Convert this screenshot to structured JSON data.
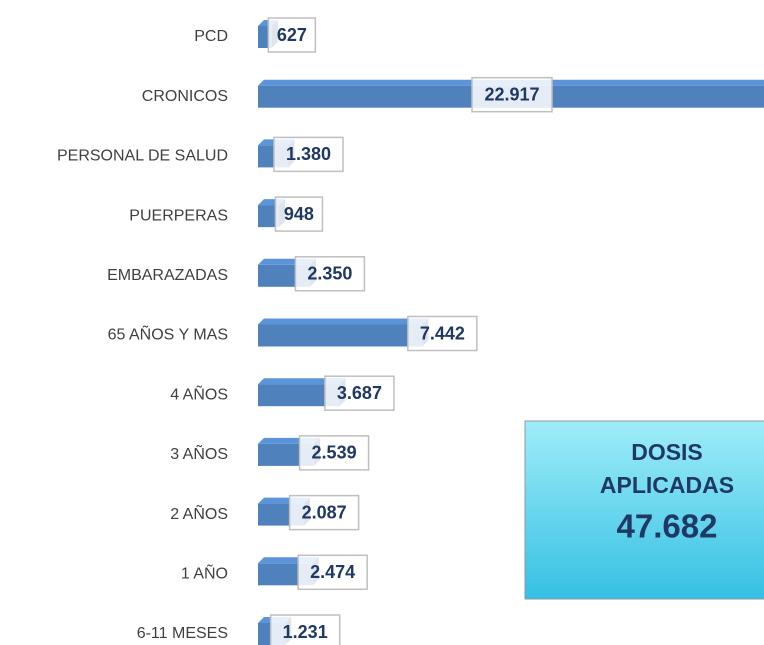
{
  "chart_data": {
    "type": "bar",
    "orientation": "horizontal",
    "categories": [
      "PCD",
      "CRONICOS",
      "PERSONAL DE SALUD",
      "PUERPERAS",
      "EMBARAZADAS",
      "65 AÑOS Y MAS",
      "4 AÑOS",
      "3 AÑOS",
      "2 AÑOS",
      "1 AÑO",
      "6-11 MESES"
    ],
    "values": [
      627,
      22917,
      1380,
      948,
      2350,
      7442,
      3687,
      2539,
      2087,
      2474,
      1231
    ],
    "value_labels": [
      "627",
      "22.917",
      "1.380",
      "948",
      "2.350",
      "7.442",
      "3.687",
      "2.539",
      "2.087",
      "2.474",
      "1.231"
    ],
    "color": "#4f81bd",
    "xlim": [
      0,
      23000
    ],
    "annotation": {
      "lines": [
        "DOSIS",
        "APLICADAS"
      ],
      "total": "47.682"
    }
  }
}
